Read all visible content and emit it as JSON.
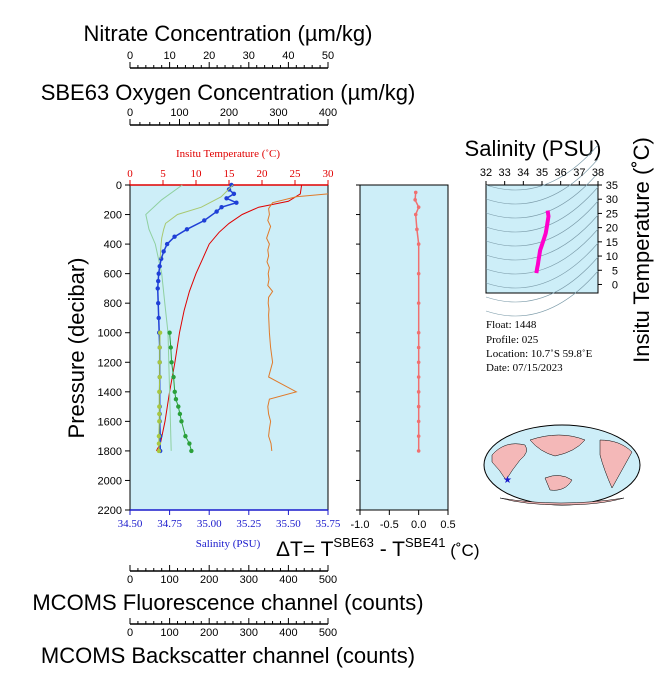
{
  "colors": {
    "plot_bg": "#cdeef8",
    "temperature": "#e00000",
    "salinity_axis": "#1a1acc",
    "oxygen_sbe63": "#1f3fd6",
    "nitrate": "#2aa03a",
    "fluorescence": "#a8c840",
    "backscatter": "#e07a2a",
    "delta_t": "#f07070",
    "ts_track": "#ff00cc"
  },
  "titles": {
    "nitrate": "Nitrate Concentration (µm/kg)",
    "oxygen": "SBE63 Oxygen Concentration (µm/kg)",
    "fluorescence": "MCOMS Fluorescence channel (counts)",
    "backscatter": "MCOMS Backscatter channel (counts)",
    "pressure": "Pressure (decibar)",
    "insitu_temperature": "Insitu Temperature (˚C)",
    "salinity": "Salinity (PSU)",
    "ts_salinity": "Salinity (PSU)",
    "ts_temperature": "Insitu Temperature (˚C)",
    "delta_t_prefix": "ΔT= T",
    "delta_t_sup1": "SBE63",
    "delta_t_mid": " - T",
    "delta_t_sup2": "SBE41",
    "delta_t_unit": " (˚C)"
  },
  "info": {
    "float": "Float:    1448",
    "profile": "Profile:  025",
    "location": "Location:  10.7˚S  59.8˚E",
    "date": "Date:  07/15/2023"
  },
  "chart_data": [
    {
      "type": "line",
      "name": "main_profile",
      "ylabel": "Pressure (decibar)",
      "ylim": [
        0,
        2200
      ],
      "yticks": [
        "0",
        "200",
        "400",
        "600",
        "800",
        "1000",
        "1200",
        "1400",
        "1600",
        "1800",
        "2000",
        "2200"
      ],
      "axes": {
        "temperature": {
          "label": "Insitu Temperature (˚C)",
          "lim": [
            0,
            30
          ],
          "ticks": [
            "0",
            "5",
            "10",
            "15",
            "20",
            "25",
            "30"
          ]
        },
        "salinity": {
          "label": "Salinity (PSU)",
          "lim": [
            34.5,
            35.75
          ],
          "ticks": [
            "34.50",
            "34.75",
            "35.00",
            "35.25",
            "35.50",
            "35.75"
          ]
        },
        "nitrate": {
          "label": "Nitrate Concentration (µm/kg)",
          "lim": [
            0,
            50
          ],
          "ticks": [
            "0",
            "10",
            "20",
            "30",
            "40",
            "50"
          ]
        },
        "oxygen": {
          "label": "SBE63 Oxygen Concentration (µm/kg)",
          "lim": [
            0,
            400
          ],
          "ticks": [
            "0",
            "100",
            "200",
            "300",
            "400"
          ]
        },
        "fluorescence": {
          "label": "MCOMS Fluorescence channel (counts)",
          "lim": [
            0,
            500
          ],
          "ticks": [
            "0",
            "100",
            "200",
            "300",
            "400",
            "500"
          ]
        },
        "backscatter": {
          "label": "MCOMS Backscatter channel (counts)",
          "lim": [
            0,
            500
          ],
          "ticks": [
            "0",
            "100",
            "200",
            "300",
            "400",
            "500"
          ]
        }
      },
      "series": [
        {
          "name": "temperature",
          "axis": "temperature",
          "x": [
            26.0,
            25.8,
            24.0,
            19.5,
            17.0,
            15.0,
            13.5,
            12.0,
            11.0,
            10.0,
            9.0,
            8.2,
            7.5,
            6.8,
            6.0,
            5.3,
            4.6,
            4.0
          ],
          "y": [
            0,
            60,
            110,
            150,
            200,
            260,
            320,
            400,
            500,
            600,
            720,
            850,
            1000,
            1200,
            1400,
            1600,
            1750,
            1800
          ]
        },
        {
          "name": "salinity",
          "axis": "salinity",
          "x": [
            34.83,
            34.7,
            34.6,
            34.62,
            34.66,
            34.68,
            34.7,
            34.72,
            34.74,
            34.76
          ],
          "y": [
            0,
            100,
            200,
            300,
            400,
            500,
            600,
            800,
            1000,
            1800
          ]
        },
        {
          "name": "oxygen",
          "axis": "oxygen",
          "markers": true,
          "x": [
            205,
            200,
            210,
            195,
            215,
            185,
            175,
            150,
            115,
            90,
            75,
            68,
            63,
            60,
            58,
            57,
            56,
            57,
            58,
            59,
            60,
            60,
            60,
            60,
            60,
            60,
            60,
            61,
            61
          ],
          "y": [
            0,
            30,
            60,
            90,
            120,
            150,
            180,
            240,
            300,
            350,
            400,
            450,
            500,
            550,
            600,
            650,
            700,
            800,
            900,
            1000,
            1100,
            1200,
            1300,
            1400,
            1500,
            1550,
            1600,
            1700,
            1800
          ]
        },
        {
          "name": "nitrate",
          "axis": "nitrate",
          "markers": true,
          "x": [
            10.0,
            10.3,
            10.5,
            11.0,
            11.3,
            11.6,
            12.2,
            12.6,
            13.0,
            14.0,
            15.0,
            15.5
          ],
          "y": [
            1000,
            1100,
            1200,
            1300,
            1400,
            1450,
            1500,
            1550,
            1600,
            1700,
            1750,
            1800
          ]
        },
        {
          "name": "fluorescence",
          "axis": "fluorescence",
          "markers": true,
          "x": [
            76,
            75,
            75,
            75,
            74,
            74,
            74,
            74,
            73,
            73,
            73
          ],
          "y": [
            1000,
            1100,
            1200,
            1300,
            1400,
            1500,
            1550,
            1600,
            1700,
            1750,
            1800
          ]
        },
        {
          "name": "backscatter",
          "axis": "backscatter",
          "x": [
            500,
            420,
            360,
            350,
            352,
            348,
            355,
            350,
            345,
            352,
            348,
            350,
            346,
            352,
            349,
            351,
            348,
            360,
            350,
            349,
            351,
            350,
            352,
            355,
            360,
            350,
            420,
            352,
            348,
            350,
            355,
            352,
            350,
            356,
            358
          ],
          "y": [
            60,
            80,
            120,
            160,
            200,
            240,
            280,
            320,
            360,
            400,
            440,
            480,
            520,
            560,
            600,
            640,
            680,
            720,
            760,
            800,
            840,
            880,
            1000,
            1100,
            1200,
            1300,
            1400,
            1450,
            1500,
            1550,
            1600,
            1650,
            1700,
            1750,
            1800
          ]
        },
        {
          "name": "fluorescence_near_surface",
          "axis": "fluorescence",
          "x": [
            260,
            230,
            180,
            120,
            90,
            85,
            80,
            78,
            76
          ],
          "y": [
            0,
            80,
            150,
            200,
            260,
            300,
            360,
            420,
            500
          ]
        }
      ]
    },
    {
      "type": "line",
      "name": "delta_t",
      "xlabel": "ΔT= T SBE63 - T SBE41 (˚C)",
      "xlim": [
        -1.0,
        0.5
      ],
      "xticks": [
        "-1.0",
        "-0.5",
        "0.0",
        "0.5"
      ],
      "ylim": [
        0,
        2200
      ],
      "series": [
        {
          "name": "delta_t",
          "markers": true,
          "x": [
            -0.05,
            -0.06,
            0.0,
            -0.05,
            -0.03,
            0.0,
            0.0,
            0.0,
            0.0,
            0.0,
            0.0,
            0.0,
            0.0,
            0.0,
            0.0,
            0.0,
            0.0
          ],
          "y": [
            50,
            100,
            150,
            200,
            300,
            400,
            600,
            800,
            1000,
            1100,
            1200,
            1300,
            1400,
            1500,
            1600,
            1700,
            1800
          ]
        }
      ]
    },
    {
      "type": "scatter",
      "name": "ts_diagram",
      "xlabel": "Salinity (PSU)",
      "ylabel": "Insitu Temperature (˚C)",
      "xlim": [
        32,
        38
      ],
      "ylim": [
        -3,
        35
      ],
      "xticks": [
        "32",
        "33",
        "34",
        "35",
        "36",
        "37",
        "38"
      ],
      "yticks": [
        "0",
        "5",
        "10",
        "15",
        "20",
        "25",
        "30",
        "35"
      ],
      "series": [
        {
          "name": "ts_track",
          "x": [
            34.7,
            34.72,
            34.75,
            34.78,
            34.8,
            34.85,
            34.9,
            35.0,
            35.1,
            35.2,
            35.25,
            35.3,
            35.35,
            35.3
          ],
          "y": [
            4,
            5,
            6,
            7,
            8,
            10,
            12,
            14,
            16,
            18,
            20,
            22,
            24,
            26
          ]
        }
      ]
    }
  ]
}
